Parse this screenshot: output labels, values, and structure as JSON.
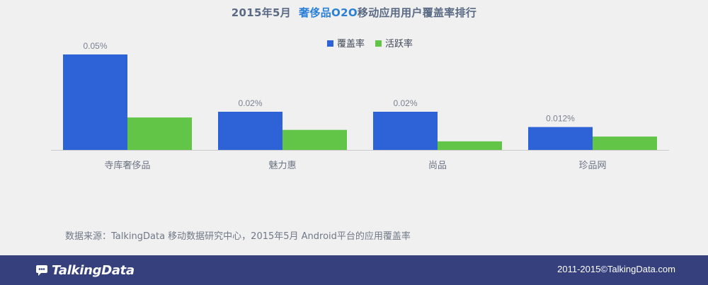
{
  "title": {
    "prefix": "2015年5月",
    "highlight": "奢侈品O2O",
    "suffix": "移动应用用户覆盖率排行"
  },
  "chart_data": {
    "type": "bar",
    "categories": [
      "寺库奢侈品",
      "魅力惠",
      "尚品",
      "珍品网"
    ],
    "series": [
      {
        "name": "覆盖率",
        "color": "#2e63d8",
        "values": [
          0.05,
          0.02,
          0.02,
          0.012
        ],
        "labels": [
          "0.05%",
          "0.02%",
          "0.02%",
          "0.012%"
        ]
      },
      {
        "name": "活跃率",
        "color": "#63c548",
        "values": [
          0.017,
          0.0105,
          0.0045,
          0.007
        ]
      }
    ],
    "legend": "top-center",
    "grid": false
  },
  "source": "数据来源：TalkingData 移动数据研究中心，2015年5月 Android平台的应用覆盖率",
  "footer": {
    "logo_text": "TalkingData",
    "copyright": "2011-2015©TalkingData.com"
  }
}
